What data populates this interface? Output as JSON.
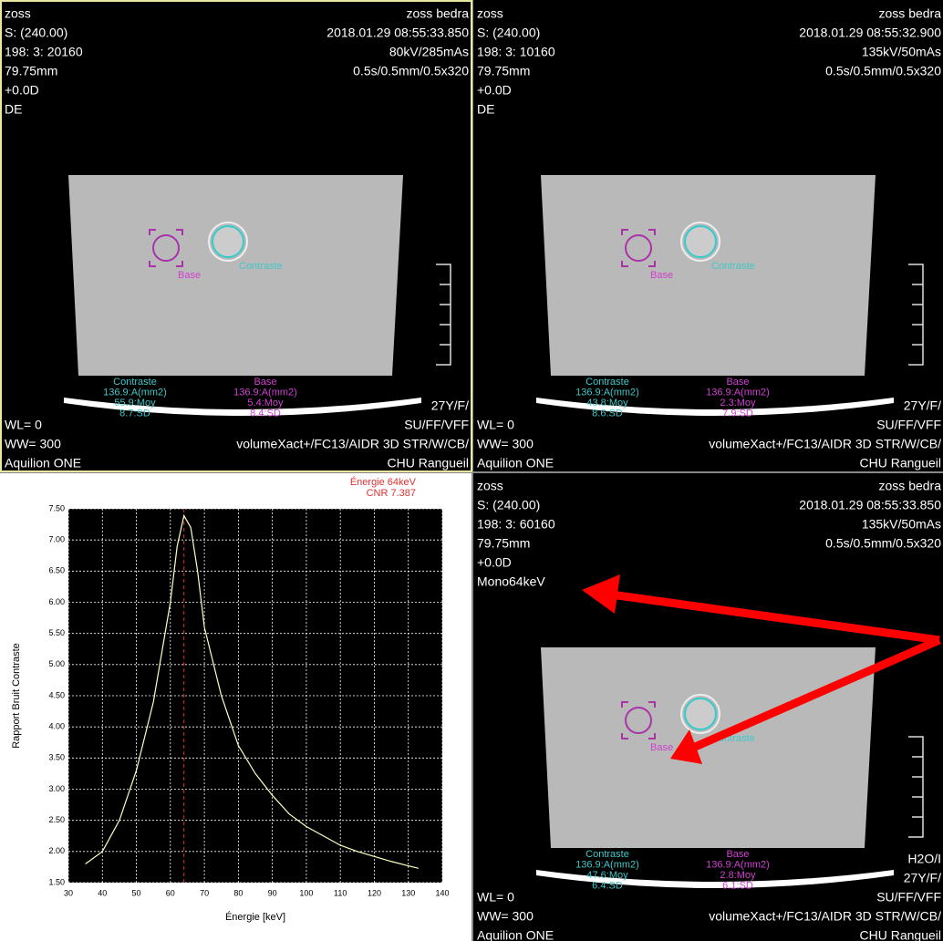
{
  "panels": [
    {
      "top_left": [
        "zoss",
        "S: (240.00)",
        "198: 3: 20160",
        "79.75mm",
        "+0.0D",
        "DE"
      ],
      "top_right": [
        "zoss bedra",
        "2018.01.29 08:55:33.850",
        "80kV/285mAs",
        "0.5s/0.5mm/0.5x320"
      ],
      "bottom_left": [
        "WL= 0",
        "WW= 300",
        "Aquilion ONE"
      ],
      "bottom_right": [
        "27Y/F/",
        "SU/FF/VFF",
        "volumeXact+/FC13/AIDR 3D STR/W/CB/",
        "CHU Rangueil"
      ],
      "roi_labels": [
        "Base",
        "Contraste"
      ],
      "stats_contraste": [
        "Contraste",
        "136.9:A(mm2)",
        "55.9:Moy",
        "8.7:SD"
      ],
      "stats_base": [
        "Base",
        "136.9:A(mm2)",
        "5.4:Moy",
        "8.4:SD"
      ]
    },
    {
      "top_left": [
        "zoss",
        "S: (240.00)",
        "198: 3: 10160",
        "79.75mm",
        "+0.0D",
        "DE"
      ],
      "top_right": [
        "zoss bedra",
        "2018.01.29 08:55:32.900",
        "135kV/50mAs",
        "0.5s/0.5mm/0.5x320"
      ],
      "bottom_left": [
        "WL= 0",
        "WW= 300",
        "Aquilion ONE"
      ],
      "bottom_right": [
        "27Y/F/",
        "SU/FF/VFF",
        "volumeXact+/FC13/AIDR 3D STR/W/CB/",
        "CHU Rangueil"
      ],
      "roi_labels": [
        "Base",
        "Contraste"
      ],
      "stats_contraste": [
        "Contraste",
        "136.9:A(mm2)",
        "43.8:Moy",
        "8.6:SD"
      ],
      "stats_base": [
        "Base",
        "136.9:A(mm2)",
        "2.3:Moy",
        "7.9:SD"
      ]
    },
    {
      "top_left": [
        "zoss",
        "S: (240.00)",
        "198: 3: 60160",
        "79.75mm",
        "+0.0D",
        "Mono64keV"
      ],
      "top_right": [
        "zoss bedra",
        "2018.01.29 08:55:33.850",
        "135kV/50mAs",
        "0.5s/0.5mm/0.5x320"
      ],
      "bottom_left": [
        "WL= 0",
        "WW= 300",
        "Aquilion ONE"
      ],
      "bottom_right": [
        "H2O/I",
        "27Y/F/",
        "SU/FF/VFF",
        "volumeXact+/FC13/AIDR 3D STR/W/CB/",
        "CHU Rangueil"
      ],
      "roi_labels": [
        "Base",
        "Contraste"
      ],
      "stats_contraste": [
        "Contraste",
        "136.9:A(mm2)",
        "47.6:Moy",
        "6.4:SD"
      ],
      "stats_base": [
        "Base",
        "136.9:A(mm2)",
        "2.8:Moy",
        "6.1:SD"
      ]
    }
  ],
  "chart": {
    "type": "line",
    "x_label": "Énergie [keV]",
    "y_label": "Rapport Bruit Contraste",
    "annotations": [
      "Énergie 64keV",
      "CNR 7.387"
    ],
    "marker_x": 64,
    "color": "#ffffc0",
    "grid": true,
    "x": [
      35,
      40,
      45,
      50,
      55,
      60,
      62,
      64,
      66,
      68,
      70,
      75,
      80,
      85,
      90,
      95,
      100,
      105,
      110,
      115,
      120,
      125,
      130,
      133
    ],
    "values": [
      1.8,
      2.0,
      2.5,
      3.3,
      4.4,
      6.0,
      6.9,
      7.39,
      7.2,
      6.5,
      5.6,
      4.5,
      3.7,
      3.25,
      2.9,
      2.6,
      2.4,
      2.25,
      2.1,
      2.0,
      1.92,
      1.84,
      1.77,
      1.73
    ],
    "xlim": [
      30,
      140
    ],
    "ylim": [
      1.5,
      7.5
    ],
    "xticks": [
      30,
      40,
      50,
      60,
      70,
      80,
      90,
      100,
      110,
      120,
      130,
      140
    ],
    "yticks": [
      {
        "value": 1.5,
        "label": "1.50"
      },
      {
        "value": 2,
        "label": "2.00"
      },
      {
        "value": 2.5,
        "label": "2.50"
      },
      {
        "value": 3,
        "label": "3.00"
      },
      {
        "value": 3.5,
        "label": "3.50"
      },
      {
        "value": 4,
        "label": "4.00"
      },
      {
        "value": 4.5,
        "label": "4.50"
      },
      {
        "value": 5,
        "label": "5.00"
      },
      {
        "value": 5.5,
        "label": "5.50"
      },
      {
        "value": 6,
        "label": "6.00"
      },
      {
        "value": 6.5,
        "label": "6.50"
      },
      {
        "value": 7,
        "label": "7.00"
      },
      {
        "value": 7.5,
        "label": "7.50"
      }
    ]
  }
}
